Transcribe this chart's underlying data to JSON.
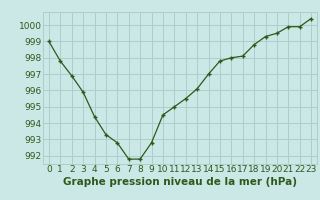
{
  "x": [
    0,
    1,
    2,
    3,
    4,
    5,
    6,
    7,
    8,
    9,
    10,
    11,
    12,
    13,
    14,
    15,
    16,
    17,
    18,
    19,
    20,
    21,
    22,
    23
  ],
  "y": [
    999.0,
    997.8,
    996.9,
    995.9,
    994.4,
    993.3,
    992.8,
    991.8,
    991.8,
    992.8,
    994.5,
    995.0,
    995.5,
    996.1,
    997.0,
    997.8,
    998.0,
    998.1,
    998.8,
    999.3,
    999.5,
    999.9,
    999.9,
    1000.4
  ],
  "line_color": "#2d5a1b",
  "marker": "+",
  "bg_color": "#cce8e6",
  "grid_color": "#aacfcc",
  "ylabel_ticks": [
    992,
    993,
    994,
    995,
    996,
    997,
    998,
    999,
    1000
  ],
  "ylim": [
    991.5,
    1000.8
  ],
  "xlim": [
    -0.5,
    23.5
  ],
  "xlabel": "Graphe pression niveau de la mer (hPa)",
  "xlabel_fontsize": 7.5,
  "tick_fontsize": 6.5
}
